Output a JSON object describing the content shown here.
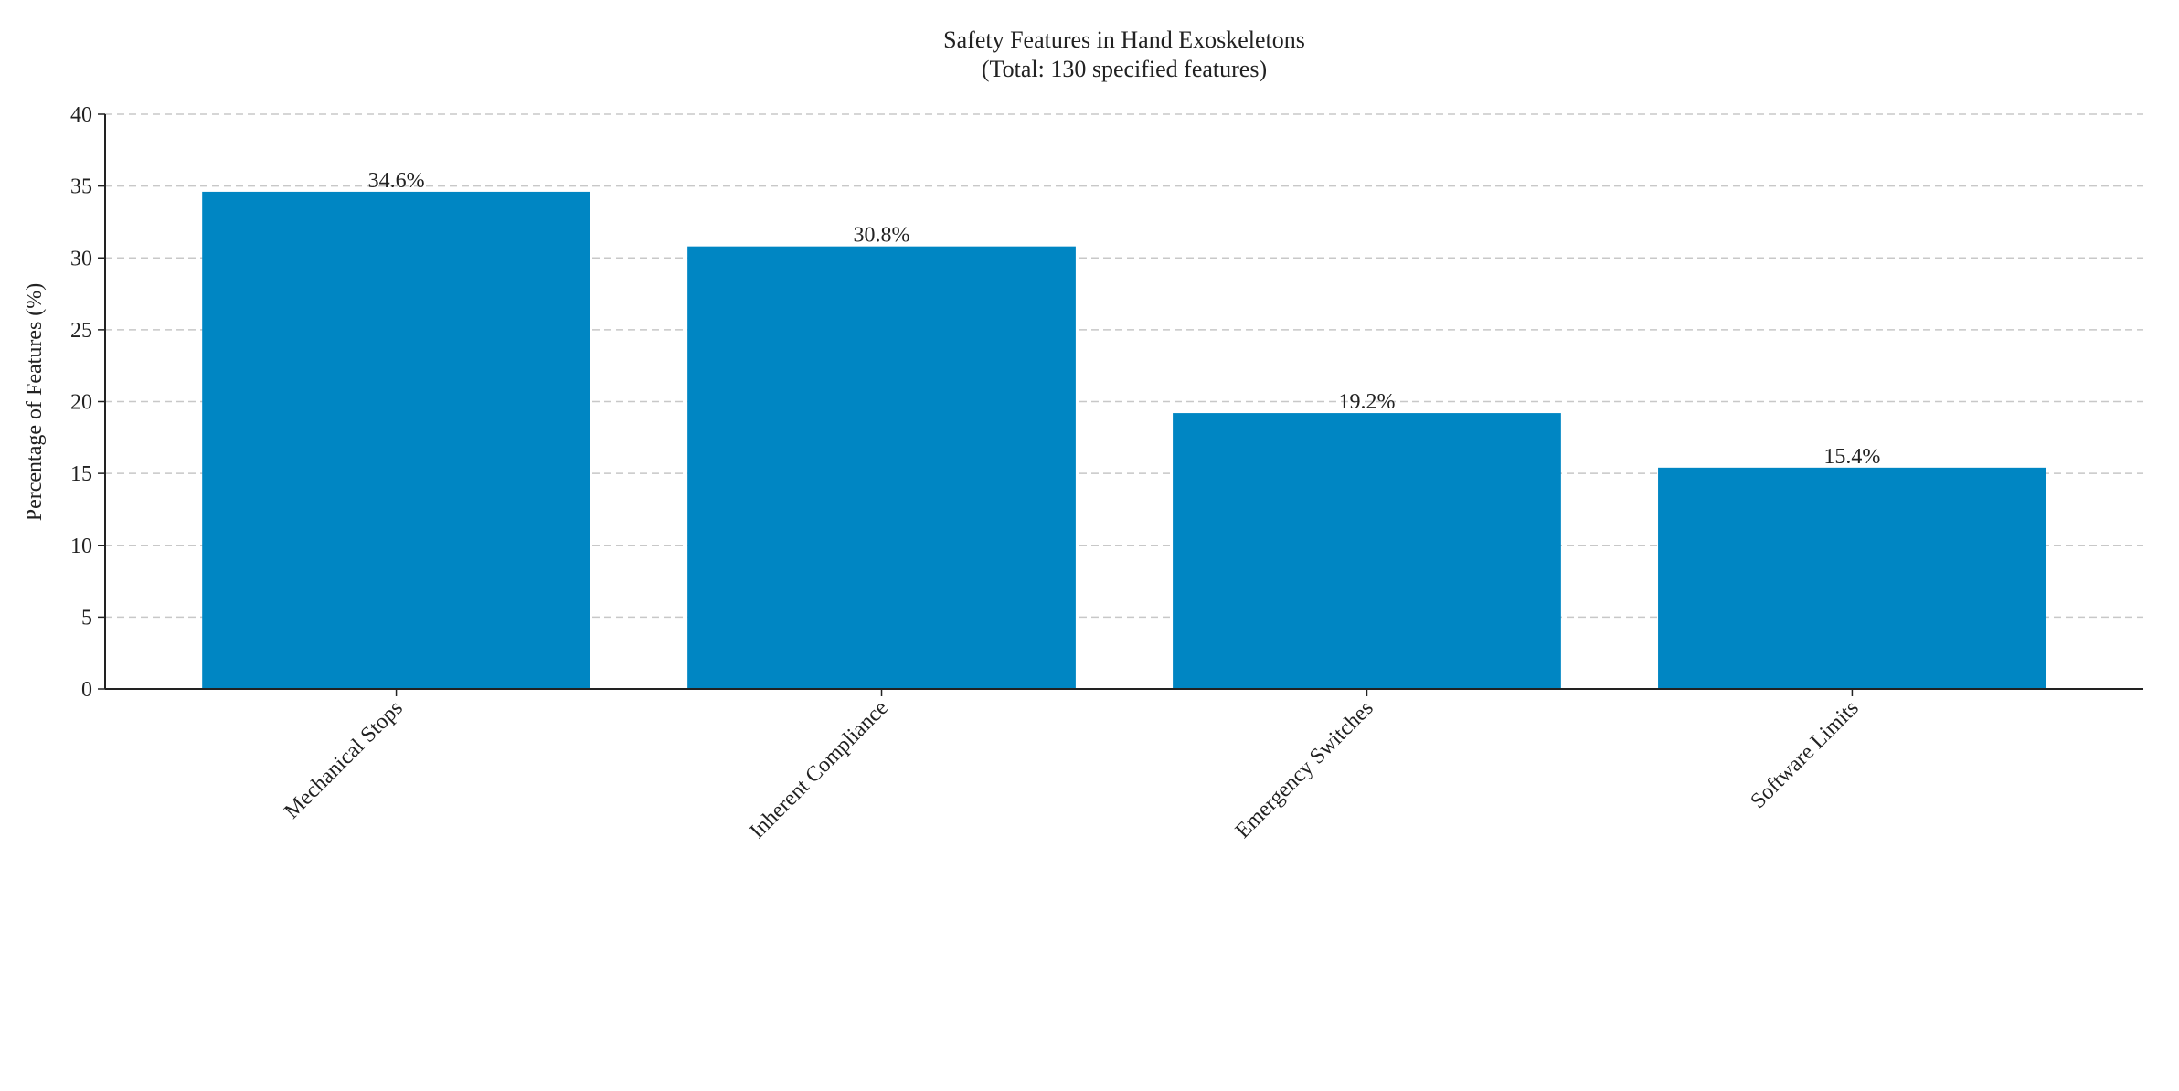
{
  "chart_data": {
    "type": "bar",
    "title": "Safety Features in Hand Exoskeletons",
    "subtitle": "(Total: 130 specified features)",
    "xlabel": "",
    "ylabel": "Percentage of Features (%)",
    "categories": [
      "Mechanical Stops",
      "Inherent Compliance",
      "Emergency Switches",
      "Software Limits"
    ],
    "values": [
      34.6,
      30.8,
      19.2,
      15.4
    ],
    "data_labels": [
      "34.6%",
      "30.8%",
      "19.2%",
      "15.4%"
    ],
    "ylim": [
      0,
      40
    ],
    "yticks": [
      0,
      5,
      10,
      15,
      20,
      25,
      30,
      35,
      40
    ],
    "grid": "horizontal dashed",
    "bar_color": "#0086c3",
    "legend": "none"
  }
}
